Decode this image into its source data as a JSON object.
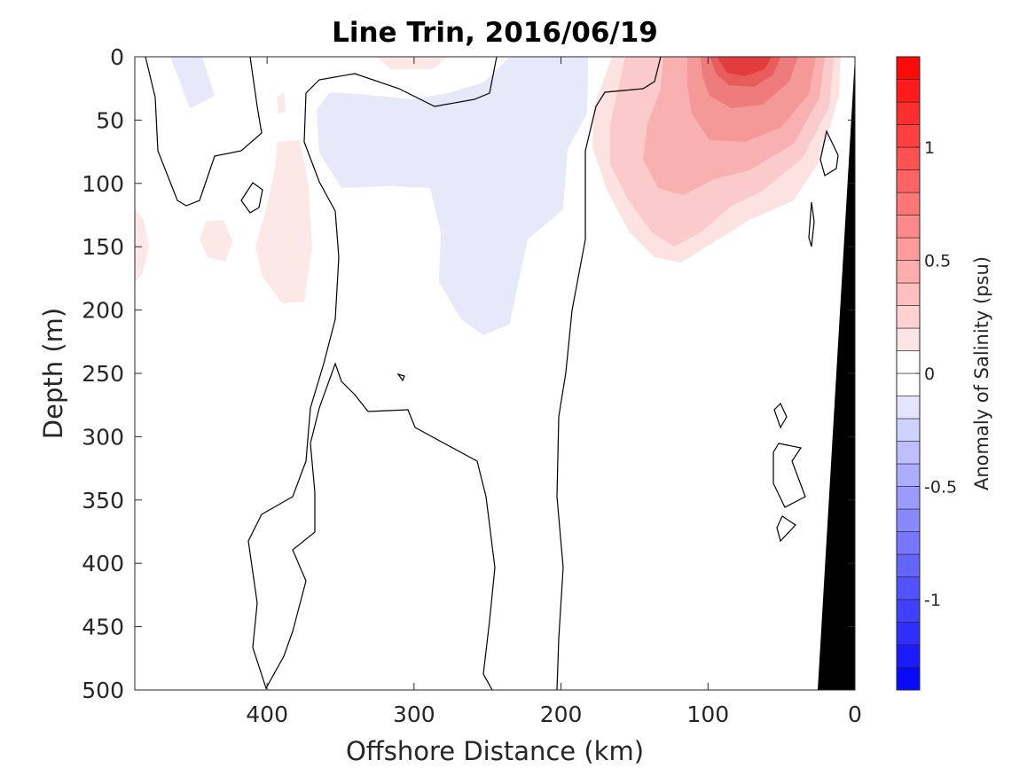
{
  "chart_data": {
    "type": "heatmap",
    "title": "Line Trin, 2016/06/19",
    "xlabel": "Offshore Distance (km)",
    "ylabel": "Depth (m)",
    "x_reversed": true,
    "y_reversed": true,
    "xlim": [
      490,
      0
    ],
    "ylim": [
      0,
      500
    ],
    "xticks": [
      400,
      300,
      200,
      100,
      0
    ],
    "yticks": [
      0,
      50,
      100,
      150,
      200,
      250,
      300,
      350,
      400,
      450,
      500
    ],
    "colorbar": {
      "label": "Anomaly of Salinity (psu)",
      "range": [
        -1.4,
        1.4
      ],
      "step": 0.1,
      "ticks": [
        {
          "value": 1,
          "label": "1"
        },
        {
          "value": 0.5,
          "label": "0.5"
        },
        {
          "value": 0,
          "label": "0"
        },
        {
          "value": -0.5,
          "label": "-0.5"
        },
        {
          "value": -1,
          "label": "-1"
        }
      ],
      "colors": {
        "negative": "#0000ff",
        "zero": "#ffffff",
        "positive": "#ff0000"
      }
    },
    "features": [
      {
        "name": "warm-salty-core",
        "center": [
          78,
          5
        ],
        "peak": 1.0
      },
      {
        "name": "salty-plume",
        "center": [
          100,
          80
        ],
        "peak": 0.35
      },
      {
        "name": "fresh-lens",
        "center": [
          280,
          130
        ],
        "peak": -0.1
      }
    ],
    "bottom_topography_color": "#000000"
  }
}
